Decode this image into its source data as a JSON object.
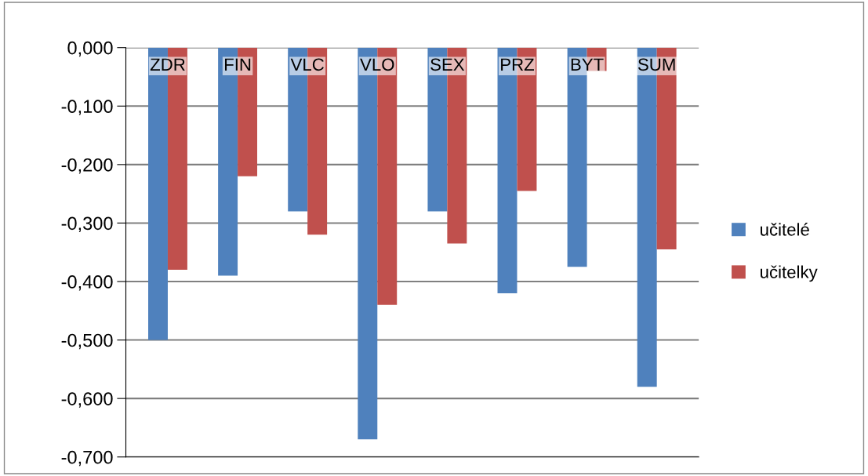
{
  "chart_data": {
    "type": "bar",
    "categories": [
      "ZDR",
      "FIN",
      "VLC",
      "VLO",
      "SEX",
      "PRZ",
      "BYT",
      "SUM"
    ],
    "series": [
      {
        "name": "učitelé",
        "color": "#4f81bd",
        "values": [
          -0.5,
          -0.39,
          -0.28,
          -0.67,
          -0.28,
          -0.42,
          -0.375,
          -0.58
        ]
      },
      {
        "name": "učitelky",
        "color": "#c0504d",
        "values": [
          -0.38,
          -0.22,
          -0.32,
          -0.44,
          -0.335,
          -0.245,
          -0.04,
          -0.345
        ]
      }
    ],
    "ylim": [
      -0.7,
      0
    ],
    "yticks": [
      {
        "value": 0,
        "label": "0,000"
      },
      {
        "value": -0.1,
        "label": "-0,100"
      },
      {
        "value": -0.2,
        "label": "-0,200"
      },
      {
        "value": -0.3,
        "label": "-0,300"
      },
      {
        "value": -0.4,
        "label": "-0,400"
      },
      {
        "value": -0.5,
        "label": "-0,500"
      },
      {
        "value": -0.6,
        "label": "-0,600"
      },
      {
        "value": -0.7,
        "label": "-0,700"
      }
    ],
    "grid": "y",
    "legend": "right"
  }
}
